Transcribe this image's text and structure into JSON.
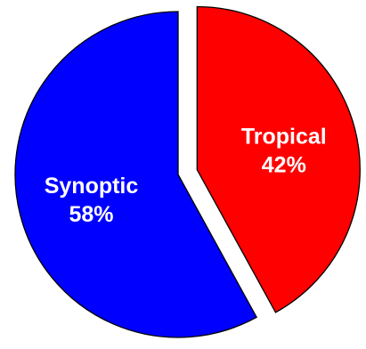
{
  "chart_data": {
    "type": "pie",
    "title": "",
    "slices": [
      {
        "label": "Tropical",
        "value": 42,
        "value_label": "42%",
        "color": "#ff0000",
        "exploded": true
      },
      {
        "label": "Synoptic",
        "value": 58,
        "value_label": "58%",
        "color": "#0000ff",
        "exploded": false
      }
    ],
    "start": "12 o'clock",
    "direction": "clockwise",
    "legend": "none"
  }
}
